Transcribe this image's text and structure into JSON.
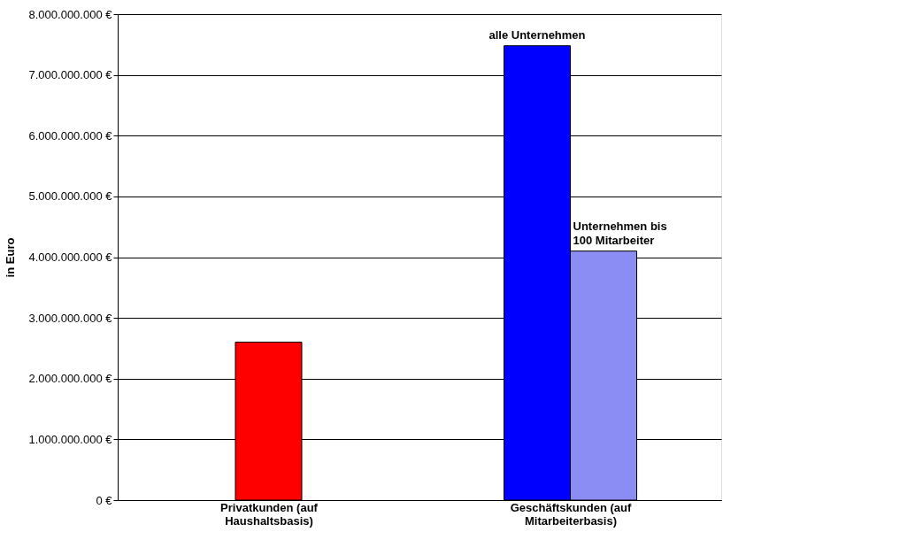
{
  "chart_data": {
    "type": "bar",
    "categories": [
      "Privatkunden (auf Haushaltsbasis)",
      "Geschäftskunden (auf Mitarbeiterbasis)"
    ],
    "series": [
      {
        "color": "#ff0000",
        "values": [
          2600000000,
          null
        ]
      },
      {
        "name": "alle Unternehmen",
        "color": "#0000ff",
        "values": [
          null,
          7480000000
        ]
      },
      {
        "name": "Unternehmen bis 100 Mitarbeiter",
        "color": "#8c8cf5",
        "values": [
          null,
          4100000000
        ]
      }
    ],
    "ylabel": "in Euro",
    "ylim": [
      0,
      8000000000
    ],
    "yticks": [
      {
        "value": 0,
        "label": "0 €"
      },
      {
        "value": 1000000000,
        "label": "1.000.000.000 €"
      },
      {
        "value": 2000000000,
        "label": "2.000.000.000 €"
      },
      {
        "value": 3000000000,
        "label": "3.000.000.000 €"
      },
      {
        "value": 4000000000,
        "label": "4.000.000.000 €"
      },
      {
        "value": 5000000000,
        "label": "5.000.000.000 €"
      },
      {
        "value": 6000000000,
        "label": "6.000.000.000 €"
      },
      {
        "value": 7000000000,
        "label": "7.000.000.000 €"
      },
      {
        "value": 8000000000,
        "label": "8.000.000.000 €"
      }
    ],
    "grid": "y",
    "legend": false
  }
}
